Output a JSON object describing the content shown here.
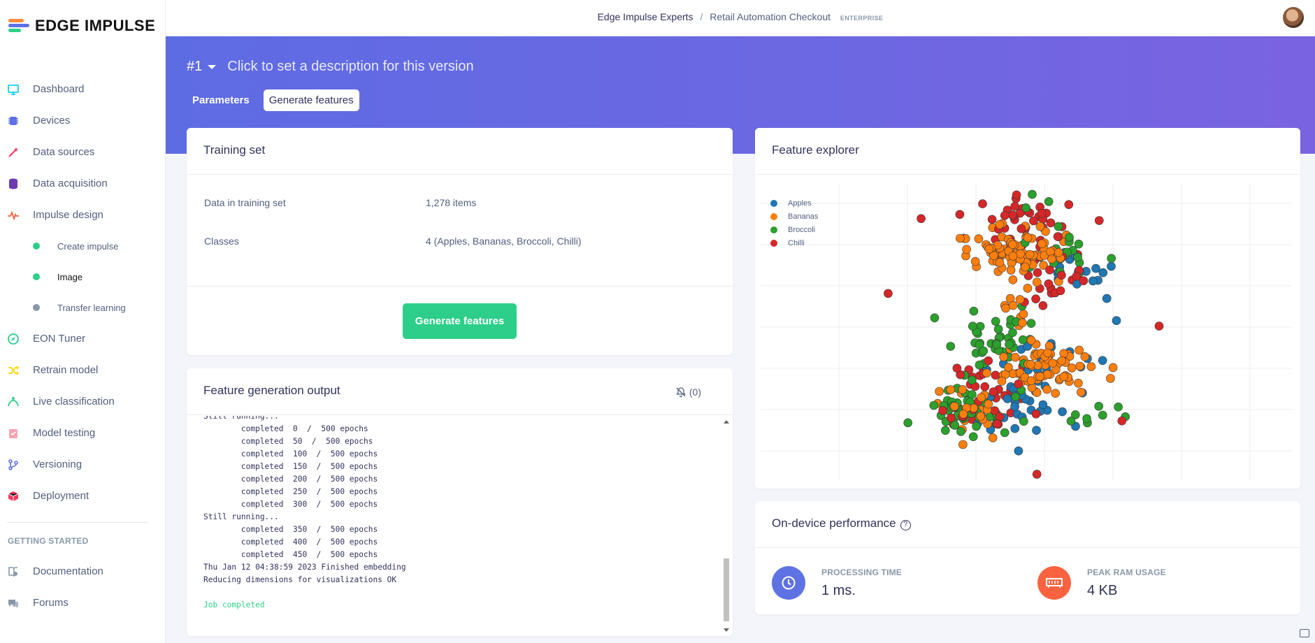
{
  "brand": {
    "name": "EDGE IMPULSE"
  },
  "sidebar": {
    "items": [
      {
        "label": "Dashboard",
        "icon": "monitor-icon",
        "color": "#11cdef"
      },
      {
        "label": "Devices",
        "icon": "chip-icon",
        "color": "#5e72e4"
      },
      {
        "label": "Data sources",
        "icon": "wand-icon",
        "color": "#f5365c"
      },
      {
        "label": "Data acquisition",
        "icon": "database-icon",
        "color": "#6f3ab0"
      },
      {
        "label": "Impulse design",
        "icon": "pulse-icon",
        "color": "#fb6340"
      }
    ],
    "sub_items": [
      {
        "label": "Create impulse",
        "dot": "#2dce89"
      },
      {
        "label": "Image",
        "dot": "#2dce89"
      },
      {
        "label": "Transfer learning",
        "dot": "#8898aa"
      }
    ],
    "items2": [
      {
        "label": "EON Tuner",
        "icon": "compass-icon",
        "color": "#2dce89"
      },
      {
        "label": "Retrain model",
        "icon": "shuffle-icon",
        "color": "#ffd600"
      },
      {
        "label": "Live classification",
        "icon": "live-icon",
        "color": "#2dce89"
      },
      {
        "label": "Model testing",
        "icon": "clipboard-icon",
        "color": "#f3a4b5"
      },
      {
        "label": "Versioning",
        "icon": "branch-icon",
        "color": "#5e72e4"
      },
      {
        "label": "Deployment",
        "icon": "box-icon",
        "color": "#f5365c"
      }
    ],
    "heading": "GETTING STARTED",
    "items3": [
      {
        "label": "Documentation",
        "icon": "book-icon",
        "color": "#8898aa"
      },
      {
        "label": "Forums",
        "icon": "chat-icon",
        "color": "#8898aa"
      }
    ]
  },
  "header": {
    "project": "Edge Impulse Experts",
    "separator": "/",
    "subproject": "Retail Automation Checkout",
    "badge": "ENTERPRISE"
  },
  "version": {
    "number": "#1",
    "description": "Click to set a description for this version"
  },
  "tabs": {
    "parameters": "Parameters",
    "generate": "Generate features"
  },
  "training_set": {
    "title": "Training set",
    "data_label": "Data in training set",
    "data_value": "1,278 items",
    "classes_label": "Classes",
    "classes_value": "4 (Apples, Bananas, Broccoli, Chilli)",
    "button": "Generate features"
  },
  "output": {
    "title": "Feature generation output",
    "notify": "(0)",
    "lines": [
      "Still running...",
      "        completed  0  /  500 epochs",
      "        completed  50  /  500 epochs",
      "        completed  100  /  500 epochs",
      "        completed  150  /  500 epochs",
      "        completed  200  /  500 epochs",
      "        completed  250  /  500 epochs",
      "        completed  300  /  500 epochs",
      "Still running...",
      "        completed  350  /  500 epochs",
      "        completed  400  /  500 epochs",
      "        completed  450  /  500 epochs",
      "Thu Jan 12 04:38:59 2023 Finished embedding",
      "Reducing dimensions for visualizations OK",
      ""
    ],
    "status": "Job completed"
  },
  "explorer": {
    "title": "Feature explorer"
  },
  "chart_data": {
    "type": "scatter",
    "title": "",
    "xlabel": "",
    "ylabel": "",
    "grid": true,
    "legend_position": "top-left",
    "series": [
      {
        "name": "Apples",
        "color": "#1f77b4",
        "clusters": [
          [
            0.56,
            0.6,
            0.05,
            0.04,
            40
          ],
          [
            0.62,
            0.33,
            0.04,
            0.06,
            35
          ],
          [
            0.5,
            0.78,
            0.05,
            0.04,
            35
          ],
          [
            0.47,
            0.7,
            0.03,
            0.03,
            15
          ]
        ]
      },
      {
        "name": "Bananas",
        "color": "#ff7f0e",
        "clusters": [
          [
            0.47,
            0.22,
            0.05,
            0.05,
            90
          ],
          [
            0.53,
            0.62,
            0.05,
            0.04,
            70
          ],
          [
            0.4,
            0.77,
            0.03,
            0.05,
            25
          ],
          [
            0.48,
            0.4,
            0.02,
            0.03,
            10
          ]
        ]
      },
      {
        "name": "Broccoli",
        "color": "#2ca02c",
        "clusters": [
          [
            0.44,
            0.52,
            0.04,
            0.05,
            80
          ],
          [
            0.39,
            0.75,
            0.04,
            0.05,
            90
          ],
          [
            0.56,
            0.24,
            0.04,
            0.05,
            35
          ],
          [
            0.64,
            0.78,
            0.03,
            0.02,
            15
          ],
          [
            0.52,
            0.06,
            0.03,
            0.02,
            6
          ]
        ]
      },
      {
        "name": "Chilli",
        "color": "#d62728",
        "clusters": [
          [
            0.5,
            0.12,
            0.05,
            0.04,
            35
          ],
          [
            0.55,
            0.33,
            0.04,
            0.05,
            25
          ],
          [
            0.44,
            0.7,
            0.04,
            0.06,
            30
          ],
          [
            0.37,
            0.78,
            0.02,
            0.03,
            10
          ]
        ]
      }
    ],
    "outliers": [
      {
        "series": "Chilli",
        "x": 0.24,
        "y": 0.37
      },
      {
        "series": "Chilli",
        "x": 0.75,
        "y": 0.48
      },
      {
        "series": "Chilli",
        "x": 0.52,
        "y": 0.98
      },
      {
        "series": "Chilli",
        "x": 0.68,
        "y": 0.8
      },
      {
        "series": "Chilli",
        "x": 0.58,
        "y": 0.07
      }
    ]
  },
  "performance": {
    "title": "On-device performance",
    "help": "?",
    "processing_label": "PROCESSING TIME",
    "processing_value": "1 ms.",
    "processing_color": "#5e72e4",
    "ram_label": "PEAK RAM USAGE",
    "ram_value": "4 KB",
    "ram_color": "#fb6340"
  }
}
